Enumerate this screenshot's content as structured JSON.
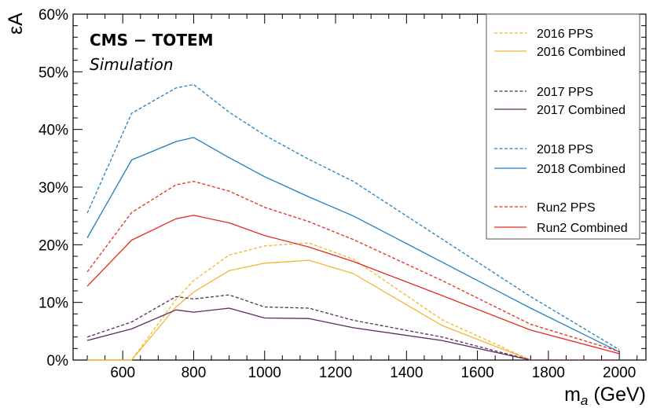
{
  "colors": {
    "2016": "#f2b632",
    "2017": "#5c2a5f",
    "2018": "#1f7fbf",
    "Run2": "#e8291c"
  },
  "chart_data": {
    "type": "line",
    "title": "",
    "experiment": "CMS − TOTEM",
    "experiment_sub": "Simulation",
    "xlabel_main": "m",
    "xlabel_sub": "a",
    "xlabel_unit": "(GeV)",
    "ylabel": "εA",
    "xlim": [
      460,
      2075
    ],
    "ylim": [
      0,
      60
    ],
    "xticks": [
      600,
      800,
      1000,
      1200,
      1400,
      1600,
      1800,
      2000
    ],
    "xtick_labels": [
      "600",
      "800",
      "1000",
      "1200",
      "1400",
      "1600",
      "1800",
      "2000"
    ],
    "yticks": [
      0,
      10,
      20,
      30,
      40,
      50,
      60
    ],
    "ytick_labels": [
      "0%",
      "10%",
      "20%",
      "30%",
      "40%",
      "50%",
      "60%"
    ],
    "grid": false,
    "legend_position": "top-right",
    "series": [
      {
        "key": "2016-pps",
        "name": "2016 PPS",
        "era": "2016",
        "style": "dashed",
        "x": [
          500,
          625,
          750,
          800,
          900,
          1000,
          1125,
          1250,
          1500,
          1750,
          2000
        ],
        "y": [
          0,
          0,
          10.5,
          13.8,
          18.2,
          19.8,
          20.3,
          17.5,
          7.0,
          0,
          0
        ]
      },
      {
        "key": "2016-combined",
        "name": "2016 Combined",
        "era": "2016",
        "style": "solid",
        "x": [
          500,
          625,
          750,
          800,
          900,
          1000,
          1125,
          1250,
          1500,
          1750,
          2000
        ],
        "y": [
          0,
          0,
          9.2,
          11.8,
          15.5,
          16.8,
          17.3,
          15.0,
          6.0,
          0,
          0
        ]
      },
      {
        "key": "2017-pps",
        "name": "2017 PPS",
        "era": "2017",
        "style": "dashed",
        "x": [
          500,
          625,
          750,
          800,
          900,
          1000,
          1125,
          1250,
          1500,
          1750,
          2000
        ],
        "y": [
          4.0,
          6.6,
          11.0,
          10.6,
          11.3,
          9.2,
          9.0,
          6.9,
          4.0,
          0,
          0
        ]
      },
      {
        "key": "2017-combined",
        "name": "2017 Combined",
        "era": "2017",
        "style": "solid",
        "x": [
          500,
          625,
          750,
          800,
          900,
          1000,
          1125,
          1250,
          1500,
          1750,
          2000
        ],
        "y": [
          3.4,
          5.4,
          8.7,
          8.3,
          9.0,
          7.3,
          7.2,
          5.6,
          3.4,
          0,
          0
        ]
      },
      {
        "key": "2018-pps",
        "name": "2018 PPS",
        "era": "2018",
        "style": "dashed",
        "x": [
          500,
          625,
          750,
          800,
          900,
          1000,
          1125,
          1250,
          1500,
          1750,
          2000
        ],
        "y": [
          25.5,
          42.8,
          47.2,
          47.8,
          43.0,
          39.0,
          34.8,
          31.0,
          21.0,
          11.0,
          1.8
        ]
      },
      {
        "key": "2018-combined",
        "name": "2018 Combined",
        "era": "2018",
        "style": "solid",
        "x": [
          500,
          625,
          750,
          800,
          900,
          1000,
          1125,
          1250,
          1500,
          1750,
          2000
        ],
        "y": [
          21.2,
          34.7,
          37.9,
          38.6,
          35.1,
          31.8,
          28.3,
          25.0,
          17.0,
          9.0,
          1.4
        ]
      },
      {
        "key": "run2-pps",
        "name": "Run2 PPS",
        "era": "Run2",
        "style": "dashed",
        "x": [
          500,
          625,
          750,
          800,
          900,
          1000,
          1125,
          1250,
          1500,
          1750,
          2000
        ],
        "y": [
          15.3,
          25.6,
          30.4,
          31.0,
          29.3,
          26.5,
          24.0,
          20.9,
          13.8,
          6.2,
          1.5
        ]
      },
      {
        "key": "run2-combined",
        "name": "Run2 Combined",
        "era": "Run2",
        "style": "solid",
        "x": [
          500,
          625,
          750,
          800,
          900,
          1000,
          1125,
          1250,
          1500,
          1750,
          2000
        ],
        "y": [
          12.8,
          20.8,
          24.5,
          25.1,
          23.8,
          21.6,
          19.6,
          17.1,
          11.2,
          5.2,
          1.1
        ]
      }
    ]
  }
}
